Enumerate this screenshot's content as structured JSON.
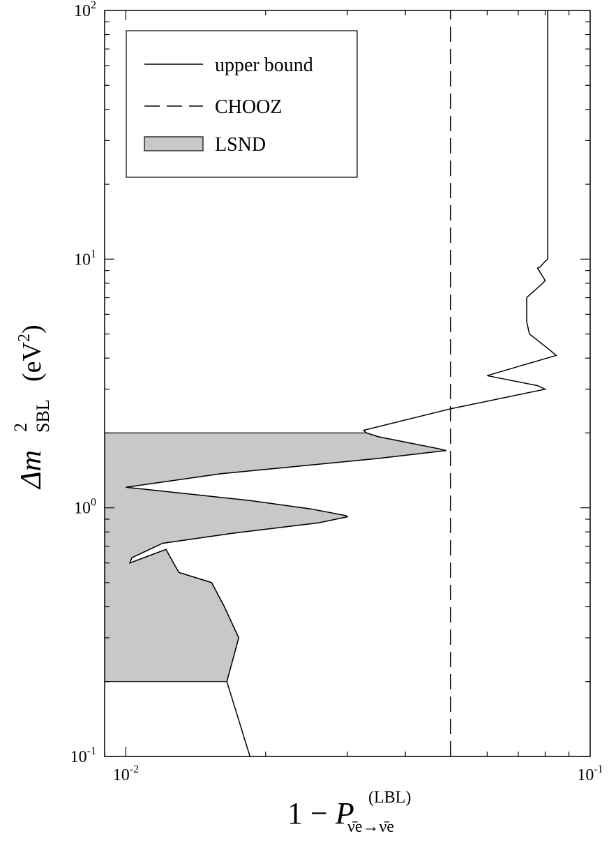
{
  "chart_data": {
    "type": "line",
    "x_scale": "log",
    "y_scale": "log",
    "xlim": [
      0.009,
      0.1
    ],
    "ylim": [
      0.1,
      100
    ],
    "grid": false,
    "legend_placement": "top-left",
    "xlabel": {
      "prefix": "1 − ",
      "symbol": "P",
      "superscript": "(LBL)",
      "subscript": "ν̄e→ν̄e"
    },
    "ylabel": {
      "symbol": "Δm",
      "superscript": "2",
      "subscript": "SBL",
      "unit": "(eV",
      "unit_superscript": "2",
      "unit_close": ")"
    },
    "x_ticks": [
      {
        "value": 0.01,
        "base": "10",
        "exp": "-2"
      },
      {
        "value": 0.1,
        "base": "10",
        "exp": "-1"
      }
    ],
    "y_ticks": [
      {
        "value": 0.1,
        "base": "10",
        "exp": "-1"
      },
      {
        "value": 1,
        "base": "10",
        "exp": "0"
      },
      {
        "value": 10,
        "base": "10",
        "exp": "1"
      },
      {
        "value": 100,
        "base": "10",
        "exp": "2"
      }
    ],
    "series": [
      {
        "name": "upper bound",
        "style": "solid",
        "color": "#000000",
        "points": [
          [
            0.0185,
            0.1
          ],
          [
            0.0165,
            0.2
          ],
          [
            0.0175,
            0.3
          ],
          [
            0.0163,
            0.4
          ],
          [
            0.0153,
            0.5
          ],
          [
            0.0148,
            0.51
          ],
          [
            0.013,
            0.55
          ],
          [
            0.0122,
            0.68
          ],
          [
            0.0102,
            0.6
          ],
          [
            0.0103,
            0.63
          ],
          [
            0.012,
            0.72
          ],
          [
            0.017,
            0.79
          ],
          [
            0.026,
            0.87
          ],
          [
            0.03,
            0.92
          ],
          [
            0.0298,
            0.93
          ],
          [
            0.025,
            0.99
          ],
          [
            0.0185,
            1.07
          ],
          [
            0.01,
            1.21
          ],
          [
            0.016,
            1.37
          ],
          [
            0.035,
            1.58
          ],
          [
            0.049,
            1.7
          ],
          [
            0.047,
            1.73
          ],
          [
            0.035,
            1.93
          ],
          [
            0.033,
            2.0
          ],
          [
            0.0325,
            2.05
          ],
          [
            0.05,
            2.5
          ],
          [
            0.08,
            3.0
          ],
          [
            0.077,
            3.1
          ],
          [
            0.06,
            3.4
          ],
          [
            0.07,
            3.7
          ],
          [
            0.0845,
            4.1
          ],
          [
            0.082,
            4.3
          ],
          [
            0.074,
            5.0
          ],
          [
            0.073,
            5.6
          ],
          [
            0.073,
            7.0
          ],
          [
            0.079,
            8.0
          ],
          [
            0.08,
            8.2
          ],
          [
            0.077,
            9.2
          ],
          [
            0.078,
            9.3
          ],
          [
            0.08,
            9.8
          ],
          [
            0.081,
            10.0
          ],
          [
            0.081,
            100
          ]
        ]
      },
      {
        "name": "CHOOZ",
        "style": "dashed",
        "color": "#000000",
        "points": [
          [
            0.05,
            0.1
          ],
          [
            0.05,
            100
          ]
        ]
      },
      {
        "name": "LSND",
        "style": "filled-region",
        "color": "#c8c8c8",
        "polygon": [
          [
            0.009,
            0.2
          ],
          [
            0.0165,
            0.2
          ],
          [
            0.0175,
            0.3
          ],
          [
            0.0163,
            0.4
          ],
          [
            0.0153,
            0.5
          ],
          [
            0.0148,
            0.51
          ],
          [
            0.013,
            0.55
          ],
          [
            0.0122,
            0.68
          ],
          [
            0.0102,
            0.6
          ],
          [
            0.0103,
            0.63
          ],
          [
            0.012,
            0.72
          ],
          [
            0.017,
            0.79
          ],
          [
            0.026,
            0.87
          ],
          [
            0.03,
            0.92
          ],
          [
            0.0298,
            0.93
          ],
          [
            0.025,
            0.99
          ],
          [
            0.0185,
            1.07
          ],
          [
            0.01,
            1.21
          ],
          [
            0.016,
            1.37
          ],
          [
            0.035,
            1.58
          ],
          [
            0.049,
            1.7
          ],
          [
            0.047,
            1.73
          ],
          [
            0.035,
            1.93
          ],
          [
            0.033,
            2.0
          ],
          [
            0.009,
            2.0
          ]
        ]
      }
    ],
    "legend": [
      {
        "label": "upper bound",
        "style": "solid"
      },
      {
        "label": "CHOOZ",
        "style": "dashed"
      },
      {
        "label": "LSND",
        "style": "filled"
      }
    ]
  }
}
